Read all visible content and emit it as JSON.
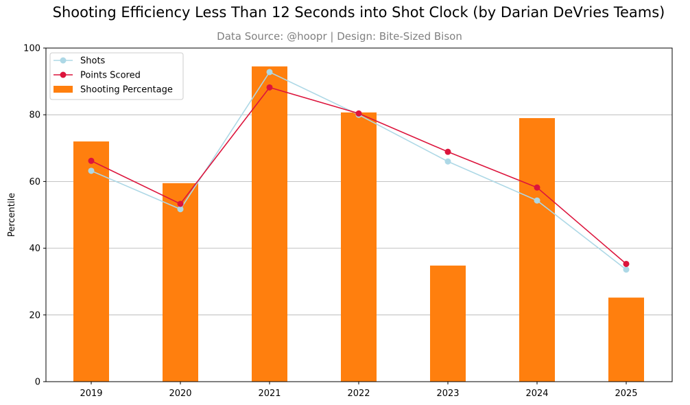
{
  "chart_data": {
    "type": "bar",
    "title": "Shooting Efficiency Less Than 12 Seconds into Shot Clock (by Darian DeVries Teams)",
    "subtitle": "Data Source: @hoopr | Design: Bite-Sized Bison",
    "xlabel": "",
    "ylabel": "Percentile",
    "ylim": [
      0,
      100
    ],
    "yticks": [
      0,
      20,
      40,
      60,
      80,
      100
    ],
    "grid": "y",
    "legend_position": "top-left",
    "categories": [
      "2019",
      "2020",
      "2021",
      "2022",
      "2023",
      "2024",
      "2025"
    ],
    "bar_series": {
      "name": "Shooting Percentage",
      "color": "#ff7f0e",
      "values": [
        72,
        59.5,
        94.5,
        80.7,
        34.8,
        79,
        25.2
      ]
    },
    "line_series": [
      {
        "name": "Shots",
        "color": "#add8e6",
        "values": [
          63.2,
          51.7,
          92.8,
          80,
          66,
          54.3,
          33.6
        ]
      },
      {
        "name": "Points Scored",
        "color": "#dc143c",
        "values": [
          66.2,
          53.3,
          88.2,
          80.4,
          68.9,
          58.2,
          35.3
        ]
      }
    ]
  }
}
